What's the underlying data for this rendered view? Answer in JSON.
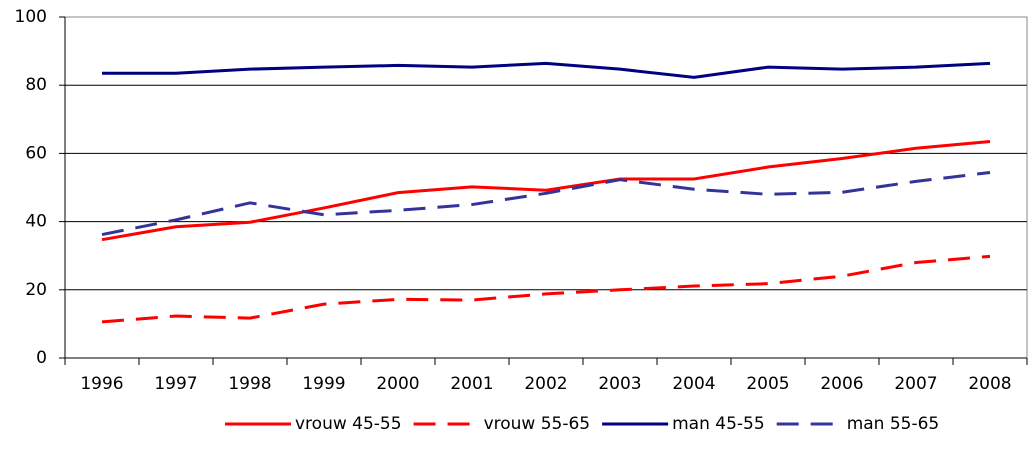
{
  "chart_data": {
    "type": "line",
    "categories": [
      "1996",
      "1997",
      "1998",
      "1999",
      "2000",
      "2001",
      "2002",
      "2003",
      "2004",
      "2005",
      "2006",
      "2007",
      "2008"
    ],
    "series": [
      {
        "name": "vrouw 45-55",
        "color": "#ff0000",
        "dashed": false,
        "values": [
          34.7,
          38.5,
          39.8,
          44,
          48.5,
          50.2,
          49.2,
          52.5,
          52.5,
          56,
          58.5,
          61.5,
          63.5
        ]
      },
      {
        "name": "vrouw 55-65",
        "color": "#ff0000",
        "dashed": true,
        "values": [
          10.6,
          12.3,
          11.7,
          15.8,
          17.2,
          17,
          18.8,
          20,
          21.1,
          21.8,
          24,
          28,
          29.8
        ]
      },
      {
        "name": "man 45-55",
        "color": "#000080",
        "dashed": false,
        "values": [
          83.5,
          83.5,
          84.7,
          85.3,
          85.8,
          85.3,
          86.4,
          84.7,
          82.3,
          85.3,
          84.7,
          85.3,
          86.4
        ]
      },
      {
        "name": "man 55-65",
        "color": "#333399",
        "dashed": true,
        "values": [
          36.2,
          40.5,
          45.5,
          42,
          43.3,
          45,
          48.3,
          52.3,
          49.5,
          48,
          48.6,
          51.8,
          54.4
        ]
      }
    ],
    "ylim": [
      0,
      100
    ],
    "yticks": [
      0,
      20,
      40,
      60,
      80,
      100
    ],
    "grid": true,
    "legend": "bottom"
  }
}
